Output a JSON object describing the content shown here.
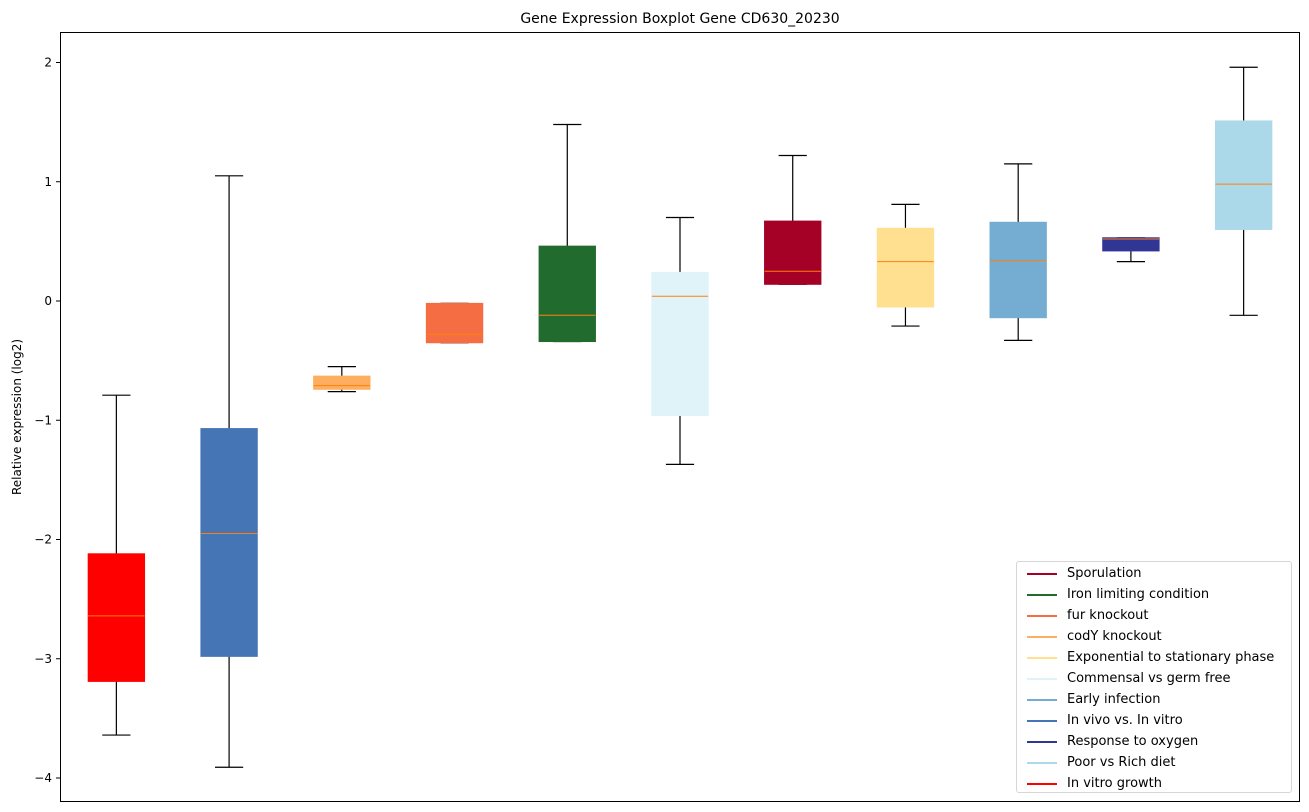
{
  "chart_data": {
    "type": "boxplot",
    "title": "Gene Expression Boxplot Gene CD630_20230",
    "xlabel": "",
    "ylabel": "Relative expression (log2)",
    "ylim": [
      -4.2,
      2.25
    ],
    "yticks": [
      2,
      1,
      0,
      -1,
      -2,
      -3,
      -4
    ],
    "ytick_labels": [
      "2",
      "1",
      "0",
      "−1",
      "−2",
      "−3",
      "−4"
    ],
    "grid": false,
    "legend_position": "bottom-right",
    "median_color": "#ff7f0e",
    "series": [
      {
        "name": "In vitro growth",
        "color": "#ff0000",
        "whisker_low": -3.64,
        "q1": -3.19,
        "median": -2.64,
        "q3": -2.12,
        "whisker_high": -0.79
      },
      {
        "name": "In vivo vs. In vitro",
        "color": "#4575b4",
        "whisker_low": -3.91,
        "q1": -2.98,
        "median": -1.95,
        "q3": -1.07,
        "whisker_high": 1.05
      },
      {
        "name": "codY knockout",
        "color": "#fdae61",
        "whisker_low": -0.76,
        "q1": -0.74,
        "median": -0.71,
        "q3": -0.63,
        "whisker_high": -0.55
      },
      {
        "name": "fur knockout",
        "color": "#f46d43",
        "whisker_low": -0.35,
        "q1": -0.35,
        "median": -0.28,
        "q3": -0.02,
        "whisker_high": -0.02
      },
      {
        "name": "Iron limiting condition",
        "color": "#226b2e",
        "whisker_low": -0.34,
        "q1": -0.34,
        "median": -0.12,
        "q3": 0.46,
        "whisker_high": 1.48
      },
      {
        "name": "Commensal vs germ free",
        "color": "#e0f3f8",
        "whisker_low": -1.37,
        "q1": -0.96,
        "median": 0.04,
        "q3": 0.24,
        "whisker_high": 0.7
      },
      {
        "name": "Sporulation",
        "color": "#a50026",
        "whisker_low": 0.14,
        "q1": 0.14,
        "median": 0.25,
        "q3": 0.67,
        "whisker_high": 1.22
      },
      {
        "name": "Exponential to stationary phase",
        "color": "#fee090",
        "whisker_low": -0.21,
        "q1": -0.05,
        "median": 0.33,
        "q3": 0.61,
        "whisker_high": 0.81
      },
      {
        "name": "Early infection",
        "color": "#74add1",
        "whisker_low": -0.33,
        "q1": -0.14,
        "median": 0.34,
        "q3": 0.66,
        "whisker_high": 1.15
      },
      {
        "name": "Response to oxygen",
        "color": "#313695",
        "whisker_low": 0.33,
        "q1": 0.42,
        "median": 0.52,
        "q3": 0.53,
        "whisker_high": 0.53
      },
      {
        "name": "Poor vs Rich diet",
        "color": "#abd9e9",
        "whisker_low": -0.12,
        "q1": 0.6,
        "median": 0.98,
        "q3": 1.51,
        "whisker_high": 1.96
      }
    ],
    "legend": [
      {
        "label": "Sporulation",
        "color": "#a50026"
      },
      {
        "label": "Iron limiting condition",
        "color": "#226b2e"
      },
      {
        "label": "fur knockout",
        "color": "#f46d43"
      },
      {
        "label": "codY knockout",
        "color": "#fdae61"
      },
      {
        "label": "Exponential to stationary phase",
        "color": "#fee090"
      },
      {
        "label": "Commensal vs germ free",
        "color": "#e0f3f8"
      },
      {
        "label": "Early infection",
        "color": "#74add1"
      },
      {
        "label": "In vivo vs. In vitro",
        "color": "#4575b4"
      },
      {
        "label": "Response to oxygen",
        "color": "#313695"
      },
      {
        "label": "Poor vs Rich diet",
        "color": "#abd9e9"
      },
      {
        "label": "In vitro growth",
        "color": "#ff0000"
      }
    ]
  }
}
